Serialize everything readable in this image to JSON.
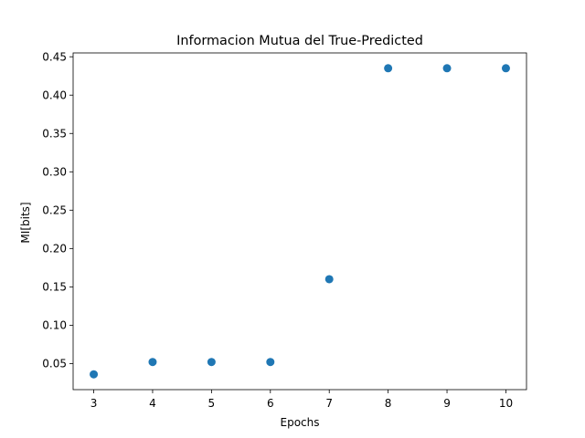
{
  "chart_data": {
    "type": "scatter",
    "title": "Informacion Mutua del True-Predicted",
    "xlabel": "Epochs",
    "ylabel": "MI[bits]",
    "xlim": [
      2.65,
      10.35
    ],
    "ylim": [
      0.016,
      0.455
    ],
    "xticks": [
      3,
      4,
      5,
      6,
      7,
      8,
      9,
      10
    ],
    "yticks": [
      0.05,
      0.1,
      0.15,
      0.2,
      0.25,
      0.3,
      0.35,
      0.4,
      0.45
    ],
    "ytick_labels": [
      "0.05",
      "0.10",
      "0.15",
      "0.20",
      "0.25",
      "0.30",
      "0.35",
      "0.40",
      "0.45"
    ],
    "grid": false,
    "marker_color": "#1f77b4",
    "series": [
      {
        "x": [
          3,
          4,
          5,
          6,
          7,
          8,
          9,
          10
        ],
        "y": [
          0.036,
          0.052,
          0.052,
          0.052,
          0.16,
          0.435,
          0.435,
          0.435
        ]
      }
    ]
  }
}
